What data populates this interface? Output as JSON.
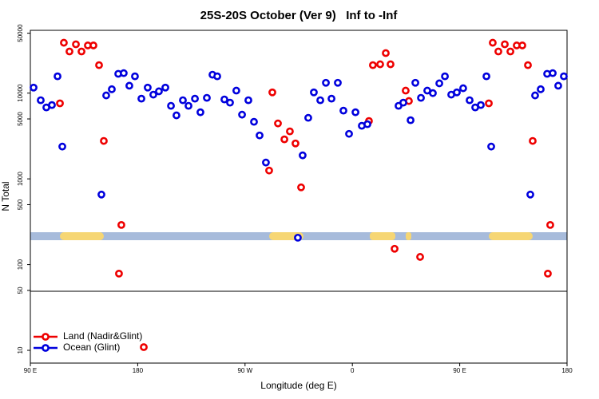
{
  "chart_data": {
    "type": "scatter",
    "title": "25S-20S October (Ver 9)   Inf to -Inf",
    "x_label": "Longitude (deg E)",
    "y_label": "N Total",
    "log_y": true,
    "legend": "bottom-left",
    "xlim": [
      90,
      540
    ],
    "ylim": [
      7.1,
      54000
    ],
    "xticks": [
      {
        "value": 90,
        "label": "90 E"
      },
      180,
      {
        "value": 270,
        "label": "90 W"
      },
      {
        "value": 360,
        "label": "0"
      },
      {
        "value": 450,
        "label": "90 E"
      },
      {
        "value": 540,
        "label": "180"
      }
    ],
    "yticks": [
      10,
      50,
      100,
      500,
      1000,
      5000,
      10000,
      50000
    ],
    "series": [
      {
        "name": "Land (Nadir&Glint)",
        "color": "#ee0000",
        "x": [
          114.8,
          118.1,
          122.8,
          128.2,
          132.9,
          138.2,
          142.9,
          147.6,
          151.6,
          164.3,
          166.3,
          185.1,
          290.2,
          292.9,
          297.6,
          303,
          307.6,
          312.3,
          317,
          373.9,
          377.2,
          383.3,
          388,
          392,
          395.4,
          404.7,
          407.4,
          416.8,
          474.4,
          477.7,
          482.4,
          487.8,
          492.5,
          497.8,
          502.5,
          507.2,
          511.2,
          523.9,
          525.9
        ],
        "values": [
          7600,
          38700,
          30600,
          37100,
          30600,
          36000,
          36000,
          21200,
          2770,
          78.5,
          290,
          10.9,
          1250,
          10200,
          4430,
          2890,
          3580,
          2590,
          796,
          4730,
          21200,
          21700,
          29300,
          21700,
          153,
          10700,
          8090,
          123,
          7600,
          38700,
          30600,
          37100,
          30600,
          36000,
          36000,
          21200,
          2770,
          78.5,
          290
        ]
      },
      {
        "name": "Ocean (Glint)",
        "color": "#0000dd",
        "x": [
          92.7,
          98.7,
          103.4,
          108.1,
          112.8,
          116.8,
          149.6,
          153.6,
          158.3,
          163.7,
          168.3,
          173,
          177.7,
          183.1,
          188.4,
          193.1,
          197.8,
          203.2,
          207.9,
          212.5,
          217.9,
          222.6,
          228,
          232.6,
          238,
          242.7,
          246.7,
          252.7,
          257.4,
          262.7,
          267.5,
          272.8,
          277.5,
          282.2,
          287.5,
          314.3,
          318.3,
          323,
          327.7,
          333.1,
          337.8,
          342.5,
          347.8,
          352.5,
          357.2,
          362.6,
          367.9,
          372.6,
          398.7,
          402.7,
          408.8,
          412.8,
          417.5,
          422.8,
          427.5,
          432.9,
          437.6,
          442.9,
          447.6,
          452.9,
          458.3,
          463,
          467.7,
          472.4,
          476.4,
          509.2,
          513.2,
          517.9,
          523.3,
          528,
          532.6,
          537.3
        ],
        "values": [
          11600,
          8260,
          6810,
          7260,
          15700,
          2380,
          656,
          9400,
          11100,
          16800,
          17100,
          12200,
          15700,
          8620,
          11600,
          9600,
          10500,
          11600,
          7110,
          5500,
          8260,
          7110,
          8620,
          5980,
          8810,
          16400,
          15700,
          8440,
          7740,
          10700,
          5610,
          8260,
          4630,
          3210,
          1550,
          206,
          1880,
          5150,
          10200,
          8260,
          13200,
          8620,
          13200,
          6250,
          3350,
          5980,
          4160,
          4340,
          7110,
          7740,
          4830,
          13200,
          8810,
          10700,
          10000,
          13000,
          15700,
          9600,
          10200,
          11400,
          8260,
          6810,
          7260,
          15700,
          2380,
          656,
          9400,
          11100,
          16800,
          17100,
          12200,
          15700
        ]
      }
    ]
  }
}
